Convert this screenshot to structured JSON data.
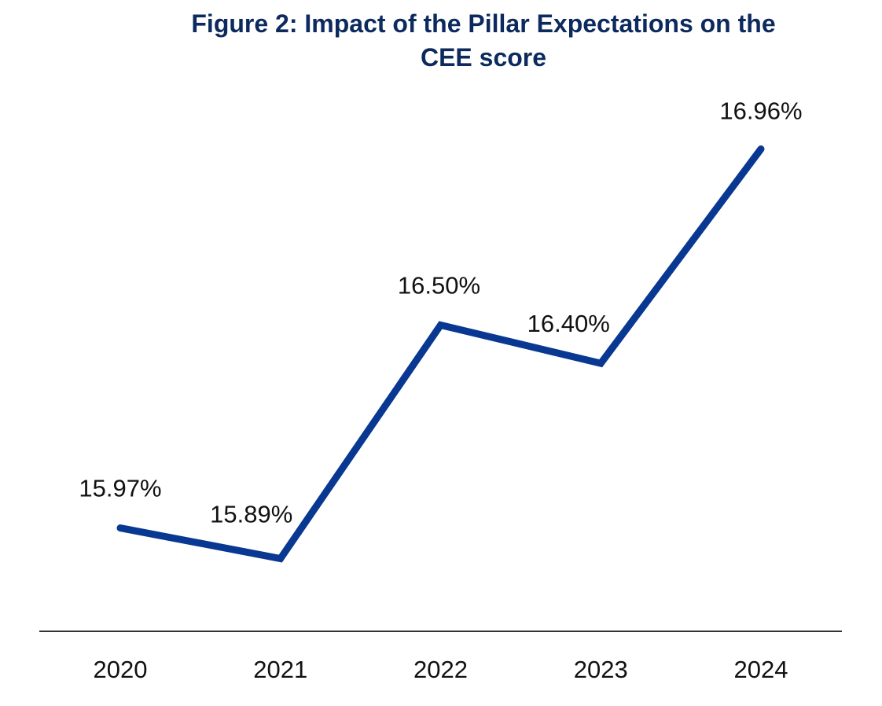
{
  "chart_data": {
    "type": "line",
    "title": "Figure 2: Impact of the Pillar Expectations on the CEE score",
    "title_lines": [
      "Figure 2: Impact of the Pillar Expectations on the",
      "CEE score"
    ],
    "xlabel": "",
    "ylabel": "",
    "categories": [
      "2020",
      "2021",
      "2022",
      "2023",
      "2024"
    ],
    "values": [
      15.97,
      15.89,
      16.5,
      16.4,
      16.96
    ],
    "data_labels": [
      "15.97%",
      "15.89%",
      "16.50%",
      "16.40%",
      "16.96%"
    ],
    "ylim": [
      15.7,
      17.2
    ],
    "y_axis_visible": false,
    "grid": false,
    "legend": "none",
    "colors": {
      "line": "#083891",
      "title": "#0d2a5e",
      "axis": "#333333"
    }
  }
}
